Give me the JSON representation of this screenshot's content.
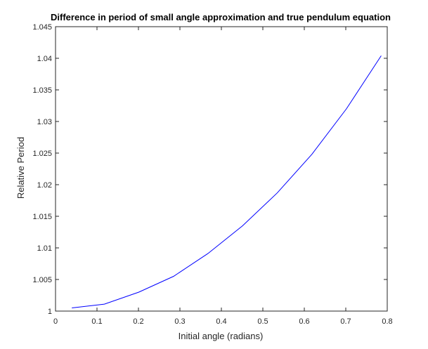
{
  "chart_data": {
    "type": "line",
    "title": "Difference in period of small angle approximation and true pendulum equation",
    "xlabel": "Initial angle (radians)",
    "ylabel": "Relative Period",
    "xlim": [
      0,
      0.8
    ],
    "ylim": [
      1,
      1.045
    ],
    "xticks": [
      0,
      0.1,
      0.2,
      0.3,
      0.4,
      0.5,
      0.6,
      0.7,
      0.8
    ],
    "xtick_labels": [
      "0",
      "0.1",
      "0.2",
      "0.3",
      "0.4",
      "0.5",
      "0.6",
      "0.7",
      "0.8"
    ],
    "yticks": [
      1,
      1.005,
      1.01,
      1.015,
      1.02,
      1.025,
      1.03,
      1.035,
      1.04,
      1.045
    ],
    "ytick_labels": [
      "1",
      "1.005",
      "1.01",
      "1.015",
      "1.02",
      "1.025",
      "1.03",
      "1.035",
      "1.04",
      "1.045"
    ],
    "grid": false,
    "series": [
      {
        "color": "#0000ff",
        "x": [
          0.0393,
          0.1178,
          0.2011,
          0.2847,
          0.3675,
          0.4512,
          0.5348,
          0.6182,
          0.7016,
          0.7854
        ],
        "y": [
          1.0005,
          1.0011,
          1.003,
          1.0055,
          1.0091,
          1.0135,
          1.0187,
          1.0248,
          1.032,
          1.0404
        ]
      }
    ]
  }
}
